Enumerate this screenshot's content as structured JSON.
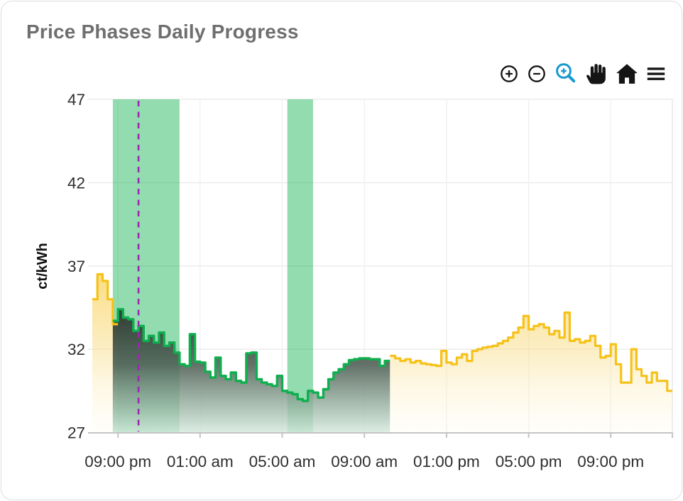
{
  "card": {
    "title": "Price Phases Daily Progress"
  },
  "toolbar": {
    "icon_color": "#151515",
    "active_color": "#1799CF",
    "icons": [
      {
        "name": "zoom-in-icon"
      },
      {
        "name": "zoom-out-icon"
      },
      {
        "name": "box-zoom-icon",
        "active": true
      },
      {
        "name": "pan-icon"
      },
      {
        "name": "home-icon"
      },
      {
        "name": "menu-icon"
      }
    ]
  },
  "chart_data": {
    "type": "area",
    "subtype": "step-line-with-gradient-fill",
    "title": "Price Phases Daily Progress",
    "ylabel": "ct/kWh",
    "ylim": [
      27,
      47
    ],
    "yticks": [
      27,
      32,
      37,
      42,
      47
    ],
    "x_range_hours": [
      -1.25,
      27
    ],
    "step_hours": 0.25,
    "grid": true,
    "xticks": [
      {
        "h": 0,
        "label": "09:00 pm"
      },
      {
        "h": 4,
        "label": "01:00 am"
      },
      {
        "h": 8,
        "label": "05:00 am"
      },
      {
        "h": 12,
        "label": "09:00 am"
      },
      {
        "h": 16,
        "label": "01:00 pm"
      },
      {
        "h": 20,
        "label": "05:00 pm"
      },
      {
        "h": 24,
        "label": "09:00 pm"
      }
    ],
    "colors": {
      "yellow": "#F6C21A",
      "green": "#0FAF4F",
      "band": "rgba(14,177,80,0.45)",
      "vline": "#9C27B0",
      "grid": "#ECECEC",
      "axis": "#C4C4C4"
    },
    "bands": [
      {
        "name": "green-phase-window-1",
        "from_h": -0.25,
        "to_h": 3.0
      },
      {
        "name": "green-phase-window-2",
        "from_h": 8.25,
        "to_h": 9.5
      }
    ],
    "vline_h": 1.0,
    "series": [
      {
        "name": "price-yellow-early",
        "phase": "yellow",
        "start_h": -1.25,
        "values": [
          35.0,
          36.5,
          36.1,
          35.0,
          33.5
        ]
      },
      {
        "name": "price-green-phase",
        "phase": "green",
        "start_h": -0.25,
        "values": [
          33.7,
          34.4,
          33.9,
          33.8,
          33.1,
          33.4,
          32.5,
          32.8,
          32.4,
          33.0,
          32.2,
          32.4,
          31.8,
          31.1,
          31.0,
          32.9,
          31.25,
          31.2,
          30.65,
          30.3,
          31.5,
          30.4,
          30.2,
          30.6,
          30.1,
          30.0,
          31.75,
          31.8,
          30.2,
          30.0,
          29.9,
          29.8,
          30.4,
          29.5,
          29.4,
          29.3,
          29.0,
          28.9,
          29.5,
          29.4,
          29.1,
          29.6,
          30.2,
          30.6,
          30.8,
          31.1,
          31.35,
          31.4,
          31.45,
          31.45,
          31.4,
          31.4,
          31.0,
          31.3
        ]
      },
      {
        "name": "price-yellow-late",
        "phase": "yellow",
        "start_h": 13.25,
        "values": [
          31.6,
          31.45,
          31.3,
          31.4,
          31.2,
          31.3,
          31.15,
          31.1,
          31.05,
          31.0,
          31.9,
          31.2,
          31.1,
          31.5,
          31.7,
          31.3,
          31.9,
          32.0,
          32.1,
          32.15,
          32.2,
          32.35,
          32.5,
          32.7,
          33.0,
          33.3,
          34.0,
          33.2,
          33.4,
          33.5,
          33.3,
          32.9,
          33.1,
          32.7,
          34.2,
          32.5,
          32.6,
          32.4,
          32.5,
          32.8,
          32.2,
          31.5,
          31.6,
          32.3,
          31.1,
          30.0,
          30.0,
          32.0,
          30.8,
          30.4,
          30.0,
          30.6,
          30.1,
          30.1,
          29.5
        ]
      }
    ]
  }
}
